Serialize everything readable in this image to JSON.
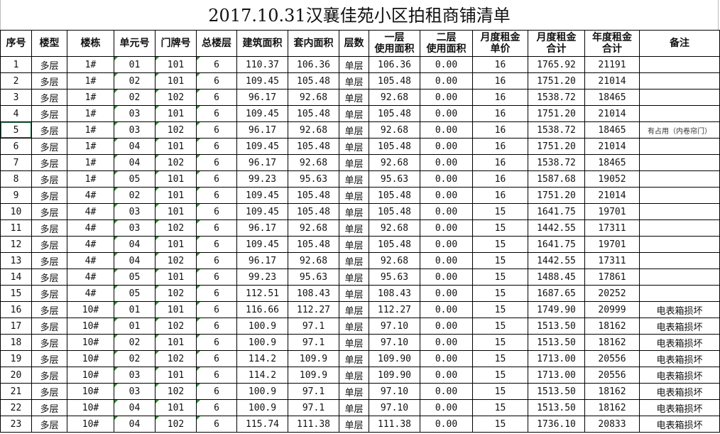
{
  "title": "2017.10.31汉襄佳苑小区拍租商铺清单",
  "headers": [
    "序号",
    "楼型",
    "楼栋",
    "单元号",
    "门牌号",
    "总楼层",
    "建筑面积",
    "套内面积",
    "层数",
    "一层\n使用面积",
    "二层\n使用面积",
    "月度租金\n单价",
    "月度租金\n合计",
    "年度租金\n合计",
    "备注"
  ],
  "rows": [
    [
      "1",
      "多层",
      "1#",
      "01",
      "101",
      "6",
      "110.37",
      "106.36",
      "单层",
      "106.36",
      "0.00",
      "16",
      "1765.92",
      "21191",
      ""
    ],
    [
      "2",
      "多层",
      "1#",
      "02",
      "101",
      "6",
      "109.45",
      "105.48",
      "单层",
      "105.48",
      "0.00",
      "16",
      "1751.20",
      "21014",
      ""
    ],
    [
      "3",
      "多层",
      "1#",
      "02",
      "102",
      "6",
      "96.17",
      "92.68",
      "单层",
      "92.68",
      "0.00",
      "16",
      "1538.72",
      "18465",
      ""
    ],
    [
      "4",
      "多层",
      "1#",
      "03",
      "101",
      "6",
      "109.45",
      "105.48",
      "单层",
      "105.48",
      "0.00",
      "16",
      "1751.20",
      "21014",
      ""
    ],
    [
      "5",
      "多层",
      "1#",
      "03",
      "102",
      "6",
      "96.17",
      "92.68",
      "单层",
      "92.68",
      "0.00",
      "16",
      "1538.72",
      "18465",
      "有占用（内卷帘门）"
    ],
    [
      "6",
      "多层",
      "1#",
      "04",
      "101",
      "6",
      "109.45",
      "105.48",
      "单层",
      "105.48",
      "0.00",
      "16",
      "1751.20",
      "21014",
      ""
    ],
    [
      "7",
      "多层",
      "1#",
      "04",
      "102",
      "6",
      "96.17",
      "92.68",
      "单层",
      "92.68",
      "0.00",
      "16",
      "1538.72",
      "18465",
      ""
    ],
    [
      "8",
      "多层",
      "1#",
      "05",
      "101",
      "6",
      "99.23",
      "95.63",
      "单层",
      "95.63",
      "0.00",
      "16",
      "1587.68",
      "19052",
      ""
    ],
    [
      "9",
      "多层",
      "4#",
      "02",
      "101",
      "6",
      "109.45",
      "105.48",
      "单层",
      "105.48",
      "0.00",
      "16",
      "1751.20",
      "21014",
      ""
    ],
    [
      "10",
      "多层",
      "4#",
      "03",
      "101",
      "6",
      "109.45",
      "105.48",
      "单层",
      "105.48",
      "0.00",
      "15",
      "1641.75",
      "19701",
      ""
    ],
    [
      "11",
      "多层",
      "4#",
      "03",
      "102",
      "6",
      "96.17",
      "92.68",
      "单层",
      "92.68",
      "0.00",
      "15",
      "1442.55",
      "17311",
      ""
    ],
    [
      "12",
      "多层",
      "4#",
      "04",
      "101",
      "6",
      "109.45",
      "105.48",
      "单层",
      "105.48",
      "0.00",
      "15",
      "1641.75",
      "19701",
      ""
    ],
    [
      "13",
      "多层",
      "4#",
      "04",
      "102",
      "6",
      "96.17",
      "92.68",
      "单层",
      "92.68",
      "0.00",
      "15",
      "1442.55",
      "17311",
      ""
    ],
    [
      "14",
      "多层",
      "4#",
      "05",
      "101",
      "6",
      "99.23",
      "95.63",
      "单层",
      "95.63",
      "0.00",
      "15",
      "1488.45",
      "17861",
      ""
    ],
    [
      "15",
      "多层",
      "4#",
      "05",
      "102",
      "6",
      "112.51",
      "108.43",
      "单层",
      "108.43",
      "0.00",
      "15",
      "1687.65",
      "20252",
      ""
    ],
    [
      "16",
      "多层",
      "10#",
      "01",
      "101",
      "6",
      "116.66",
      "112.27",
      "单层",
      "112.27",
      "0.00",
      "15",
      "1749.90",
      "20999",
      "电表箱损坏"
    ],
    [
      "17",
      "多层",
      "10#",
      "01",
      "102",
      "6",
      "100.9",
      "97.1",
      "单层",
      "97.10",
      "0.00",
      "15",
      "1513.50",
      "18162",
      "电表箱损坏"
    ],
    [
      "18",
      "多层",
      "10#",
      "02",
      "101",
      "6",
      "100.9",
      "97.1",
      "单层",
      "97.10",
      "0.00",
      "15",
      "1513.50",
      "18162",
      "电表箱损坏"
    ],
    [
      "19",
      "多层",
      "10#",
      "02",
      "102",
      "6",
      "114.2",
      "109.9",
      "单层",
      "109.90",
      "0.00",
      "15",
      "1713.00",
      "20556",
      "电表箱损坏"
    ],
    [
      "20",
      "多层",
      "10#",
      "03",
      "101",
      "6",
      "114.2",
      "109.9",
      "单层",
      "109.90",
      "0.00",
      "15",
      "1713.00",
      "20556",
      "电表箱损坏"
    ],
    [
      "21",
      "多层",
      "10#",
      "03",
      "102",
      "6",
      "100.9",
      "97.1",
      "单层",
      "97.10",
      "0.00",
      "15",
      "1513.50",
      "18162",
      "电表箱损坏"
    ],
    [
      "22",
      "多层",
      "10#",
      "04",
      "101",
      "6",
      "100.9",
      "97.1",
      "单层",
      "97.10",
      "0.00",
      "15",
      "1513.50",
      "18162",
      "电表箱损坏"
    ],
    [
      "23",
      "多层",
      "10#",
      "04",
      "102",
      "6",
      "115.74",
      "111.38",
      "单层",
      "111.38",
      "0.00",
      "15",
      "1736.10",
      "20833",
      "电表箱损坏"
    ]
  ]
}
